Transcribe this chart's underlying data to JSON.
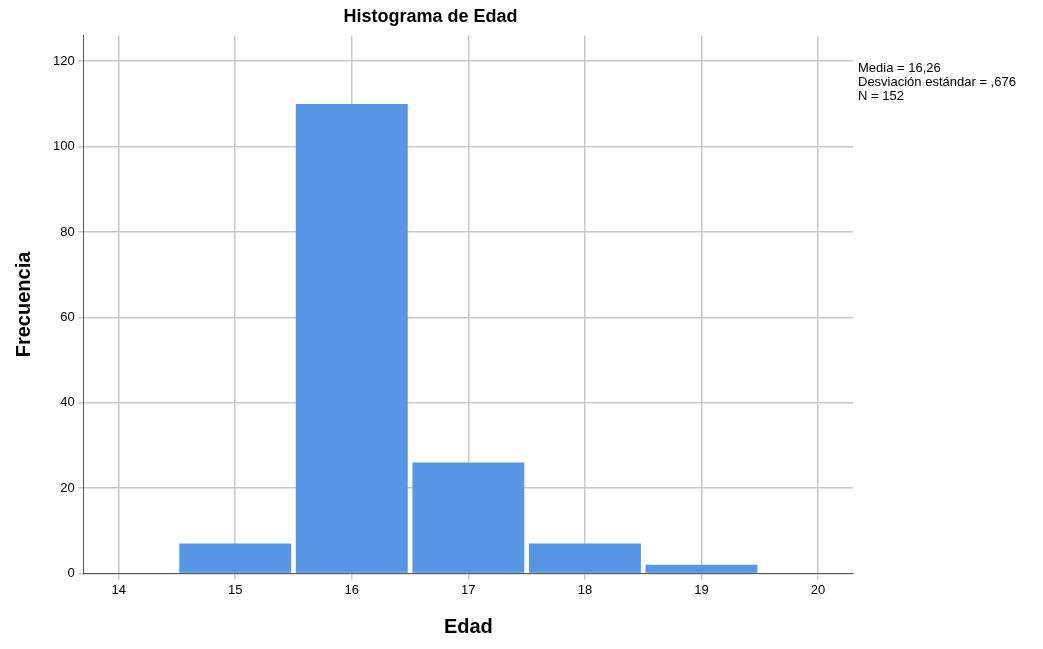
{
  "chart_data": {
    "type": "histogram",
    "title": "Histograma de Edad",
    "xlabel": "Edad",
    "ylabel": "Frecuencia",
    "bins": [
      14.5,
      15.5,
      16.5,
      17.5,
      18.5,
      19.5
    ],
    "values": [
      7,
      110,
      26,
      7,
      2
    ],
    "color": "#5696e4",
    "xlim": [
      13.7,
      20.3
    ],
    "xticks": [
      14,
      15,
      16,
      17,
      18,
      19,
      20
    ],
    "ylim": [
      0,
      126
    ],
    "yticks": [
      0,
      20,
      40,
      60,
      80,
      100,
      120
    ],
    "grid": true,
    "legend": false,
    "annotations": [
      "Media = 16,26",
      "Desviación estándar = ,676",
      "N = 152"
    ]
  }
}
